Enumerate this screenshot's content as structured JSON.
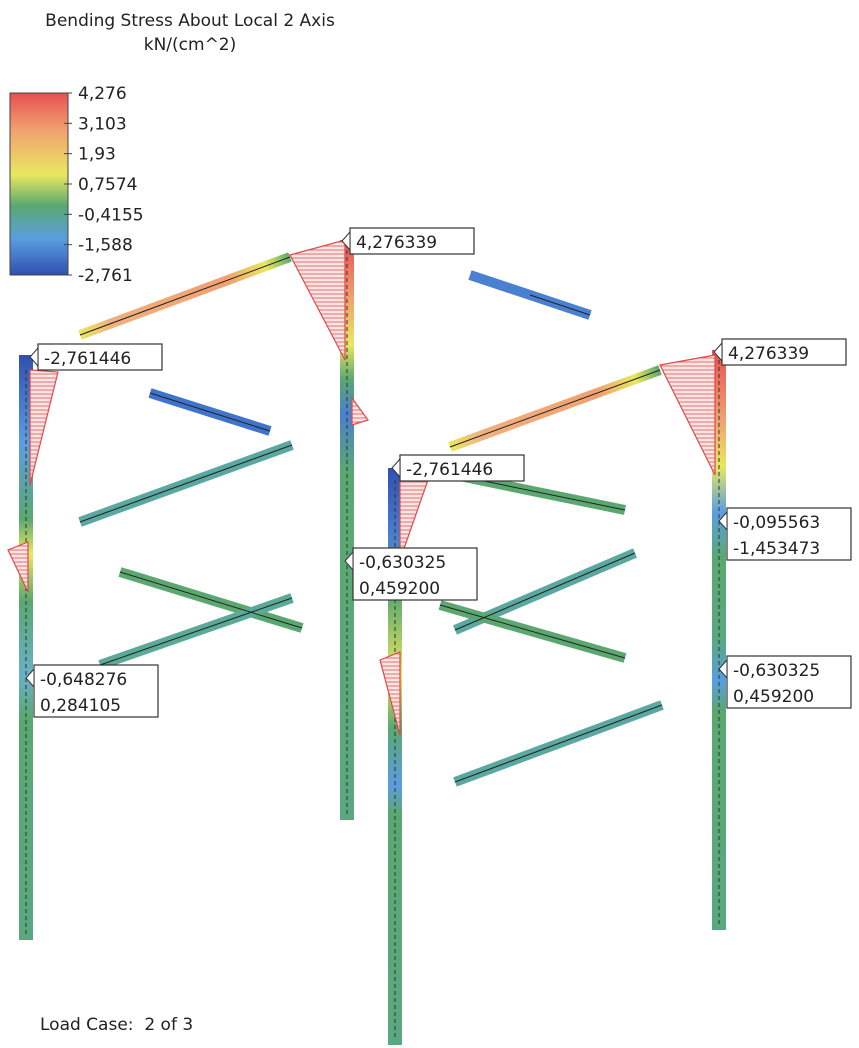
{
  "header": {
    "title": "Bending Stress About Local 2 Axis",
    "unit": "kN/(cm^2)"
  },
  "legend": {
    "ticks": [
      "4,276",
      "3,103",
      "1,93",
      "0,7574",
      "-0,4155",
      "-1,588",
      "-2,761"
    ]
  },
  "callouts": [
    {
      "lines": [
        "4,276339"
      ]
    },
    {
      "lines": [
        "-2,761446"
      ]
    },
    {
      "lines": [
        "4,276339"
      ]
    },
    {
      "lines": [
        "-2,761446"
      ]
    },
    {
      "lines": [
        "-0,630325",
        "0,459200"
      ]
    },
    {
      "lines": [
        "-0,648276",
        "0,284105"
      ]
    },
    {
      "lines": [
        "-0,095563",
        "-1,453473"
      ]
    },
    {
      "lines": [
        "-0,630325",
        "0,459200"
      ]
    }
  ],
  "footer": {
    "load_case": "Load Case:  2 of 3"
  }
}
